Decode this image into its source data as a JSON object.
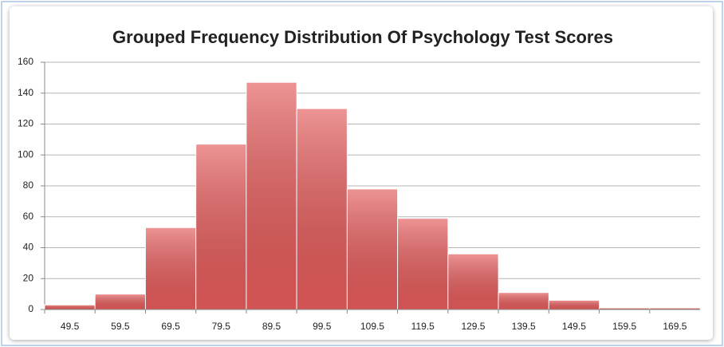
{
  "chart_data": {
    "type": "bar",
    "title": "Grouped Frequency Distribution Of Psychology Test Scores",
    "categories": [
      "49.5",
      "59.5",
      "69.5",
      "79.5",
      "89.5",
      "99.5",
      "109.5",
      "119.5",
      "129.5",
      "139.5",
      "149.5",
      "159.5",
      "169.5"
    ],
    "values": [
      3,
      10,
      53,
      107,
      147,
      130,
      78,
      59,
      36,
      11,
      6,
      1,
      1
    ],
    "color": "#e45a5a",
    "ylim": [
      0,
      160
    ],
    "yticks": [
      0,
      20,
      40,
      60,
      80,
      100,
      120,
      140,
      160
    ],
    "grid": true
  }
}
